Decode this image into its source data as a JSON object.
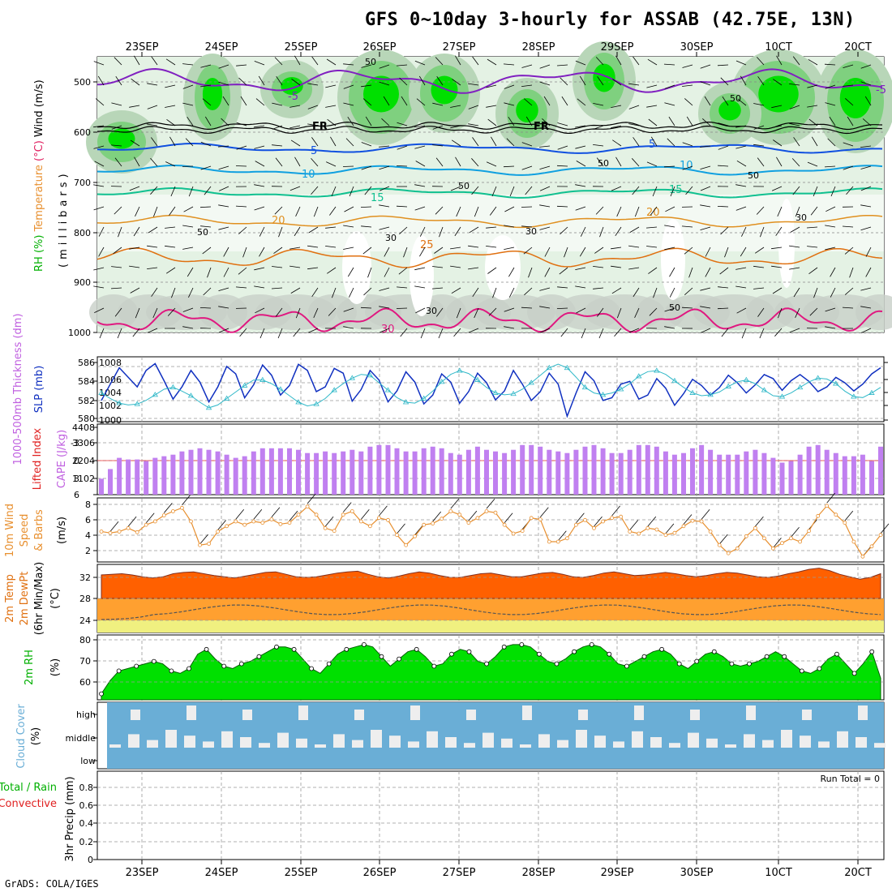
{
  "title": "GFS 0~10day 3-hourly for ASSAB (42.75E, 13N)",
  "footer": "GrADS: COLA/IGES",
  "dates": [
    "23SEP",
    "24SEP",
    "25SEP",
    "26SEP",
    "27SEP",
    "28SEP",
    "29SEP",
    "30SEP",
    "10CT",
    "20CT"
  ],
  "colors": {
    "rh_light": "#e4f2e4",
    "rh_mid": "#b8d6b8",
    "rh_gray": "#c8d0c8",
    "rh_green": "#7fd07f",
    "rh_bright": "#00e000",
    "cape": "#c080f0",
    "wind": "#e89030",
    "temp_top": "#ff6000",
    "temp_mid": "#ffa030",
    "temp_low": "#f0f080",
    "rh2m": "#00e000",
    "rh2m_dark": "#00b000",
    "cloud": "#6aaed6",
    "cloud_gap": "#eeeeee",
    "slp": "#1030c0",
    "thick": "#30b8c8"
  },
  "panels": {
    "upper": {
      "ylabel_parts": [
        {
          "text": "RH (%)",
          "color": "#00b000"
        },
        {
          "text": "Temperature",
          "color": "#e89030"
        },
        {
          "text": "(°C)",
          "color": "#e02060"
        },
        {
          "text": "Wind (m/s)",
          "color": "#000000"
        }
      ],
      "ylabel2": "(millibars)",
      "yticks": [
        "500",
        "600",
        "700",
        "800",
        "900",
        "1000"
      ],
      "isotherm_labels": [
        "-5",
        "-5",
        "5",
        "5",
        "10",
        "10",
        "15",
        "15",
        "20",
        "20",
        "25",
        "30"
      ],
      "freeze_labels": [
        "FR",
        "FR"
      ],
      "rh_labels": [
        "50",
        "50",
        "50",
        "50",
        "50",
        "50",
        "30",
        "30",
        "30",
        "30",
        "50"
      ]
    },
    "slp": {
      "ylabel_left": "1000-500mb Thickness (dm)",
      "ylabel_right": "SLP (mb)",
      "yticks_left": [
        "586",
        "584",
        "582",
        "580"
      ],
      "yticks_right": [
        "1008",
        "1006",
        "1004",
        "1002",
        "1000"
      ]
    },
    "cape": {
      "ylabel_left": "Lifted Index",
      "ylabel_right": "CAPE (J/kg)",
      "yticks_left": [
        "-3",
        "0",
        "3",
        "6"
      ],
      "yticks_right": [
        "4408",
        "3306",
        "2204",
        "1102"
      ]
    },
    "wind": {
      "ylabel": [
        "10m Wind",
        "Speed",
        "& Barbs"
      ],
      "unit": "(m/s)",
      "yticks": [
        "8",
        "6",
        "4",
        "2"
      ]
    },
    "temp": {
      "ylabel": [
        "2m Temp",
        "2m DewPt",
        "(6hr Min/Max)"
      ],
      "unit": "(°C)",
      "yticks": [
        "32",
        "28",
        "24"
      ]
    },
    "rh2m": {
      "ylabel": "2m RH",
      "unit": "(%)",
      "yticks": [
        "80",
        "70",
        "60"
      ]
    },
    "cloud": {
      "ylabel": "Cloud Cover",
      "unit": "(%)",
      "yticks": [
        "high",
        "middle",
        "low"
      ]
    },
    "precip": {
      "ylabel_parts": [
        {
          "text": "Total / Rain",
          "color": "#00b000"
        },
        {
          "text": "Convective",
          "color": "#e02020"
        }
      ],
      "ylabel2": "3hr Precip (mm)",
      "yticks": [
        "0.8",
        "0.6",
        "0.4",
        "0.2",
        "0"
      ],
      "run_total": "Run Total = 0"
    }
  },
  "chart_data": [
    {
      "type": "line",
      "name": "SLP",
      "unit": "mb",
      "x_labels": [
        "23SEP",
        "24SEP",
        "25SEP",
        "26SEP",
        "27SEP",
        "28SEP",
        "29SEP",
        "30SEP",
        "10CT",
        "20CT"
      ],
      "values": [
        1002.6,
        1005.0,
        1007.4,
        1006.0,
        1004.6,
        1007.0,
        1008.0,
        1005.5,
        1002.8,
        1004.6,
        1007.0,
        1005.3,
        1002.4,
        1004.6,
        1007.6,
        1006.5,
        1003.0,
        1004.9,
        1007.8,
        1006.3,
        1003.4,
        1004.8,
        1007.9,
        1007.0,
        1003.9,
        1004.6,
        1007.3,
        1006.6,
        1002.5,
        1004.2,
        1007.0,
        1005.6,
        1002.4,
        1004.0,
        1006.8,
        1005.3,
        1002.1,
        1003.4,
        1006.5,
        1005.3,
        1002.2,
        1003.9,
        1006.6,
        1005.2,
        1002.7,
        1004.0,
        1007.0,
        1005.0,
        1002.6,
        1003.9,
        1006.6,
        1005.0,
        1000.3,
        1003.7,
        1006.8,
        1005.5,
        1002.6,
        1003.0,
        1005.0,
        1005.4,
        1002.8,
        1003.4,
        1005.8,
        1004.4,
        1001.9,
        1003.6,
        1005.7,
        1004.8,
        1003.4,
        1004.5,
        1006.3,
        1005.2,
        1003.7,
        1004.9,
        1006.4,
        1005.8,
        1004.1,
        1005.5,
        1006.4,
        1005.4,
        1003.9,
        1004.6,
        1006.0,
        1005.2,
        1004.0,
        1005.0,
        1006.5,
        1007.4
      ]
    },
    {
      "type": "line",
      "name": "Thickness",
      "unit": "dm",
      "values": [
        582.6,
        582.0,
        581.5,
        581.3,
        581.4,
        581.8,
        582.4,
        583.0,
        583.2,
        582.8,
        582.3,
        581.6,
        581.0,
        581.3,
        582.0,
        582.7,
        583.4,
        584.0,
        584.0,
        583.6,
        583.0,
        582.3,
        581.6,
        581.2,
        581.4,
        582.0,
        582.9,
        583.6,
        584.2,
        584.6,
        584.5,
        583.7,
        582.9,
        582.1,
        581.6,
        581.5,
        582.0,
        582.8,
        583.8,
        584.6,
        585.0,
        584.7,
        584.0,
        583.2,
        582.6,
        582.4,
        582.5,
        583.0,
        583.7,
        584.5,
        585.3,
        585.7,
        585.3,
        584.3,
        583.2,
        582.6,
        582.4,
        582.6,
        583.0,
        583.6,
        584.4,
        584.9,
        585.0,
        584.6,
        583.9,
        583.2,
        582.6,
        582.3,
        582.4,
        582.7,
        583.3,
        583.8,
        584.0,
        583.6,
        582.9,
        582.3,
        582.2,
        582.6,
        583.2,
        583.8,
        584.2,
        584.1,
        583.6,
        582.8,
        582.2,
        582.1,
        582.6,
        583.2
      ]
    },
    {
      "type": "bar",
      "name": "CAPE",
      "unit": "J/kg",
      "ylim": [
        0,
        4408
      ],
      "values": [
        1000,
        1600,
        2300,
        2200,
        2200,
        2100,
        2300,
        2400,
        2500,
        2700,
        2800,
        2900,
        2800,
        2700,
        2500,
        2300,
        2400,
        2700,
        2900,
        2900,
        2900,
        2900,
        2800,
        2600,
        2600,
        2700,
        2600,
        2700,
        2800,
        2700,
        3000,
        3100,
        3100,
        2900,
        2700,
        2700,
        2900,
        3000,
        2900,
        2600,
        2500,
        2800,
        3000,
        2800,
        2700,
        2600,
        2800,
        3100,
        3100,
        3000,
        2800,
        2700,
        2600,
        2800,
        3000,
        3100,
        2900,
        2600,
        2600,
        2800,
        3100,
        3100,
        3000,
        2700,
        2500,
        2600,
        2900,
        3100,
        2800,
        2500,
        2500,
        2500,
        2700,
        2800,
        2600,
        2300,
        2000,
        2100,
        2500,
        3000,
        3100,
        2800,
        2600,
        2400,
        2400,
        2500,
        2100,
        3000
      ]
    },
    {
      "type": "line",
      "name": "10m Wind Speed",
      "unit": "m/s",
      "ylim": [
        0,
        9
      ],
      "values": [
        4.5,
        4.3,
        4.5,
        5.0,
        4.4,
        5.5,
        6.0,
        6.9,
        7.5,
        8.0,
        6.0,
        2.5,
        2.7,
        4.5,
        5.3,
        6.0,
        5.5,
        6.0,
        5.8,
        6.3,
        5.6,
        5.8,
        7.0,
        8.2,
        7.0,
        5.0,
        4.6,
        7.0,
        7.5,
        6.0,
        5.3,
        6.5,
        6.2,
        4.0,
        2.5,
        3.8,
        5.5,
        5.7,
        6.4,
        7.5,
        7.0,
        5.8,
        6.5,
        7.5,
        7.3,
        5.5,
        4.2,
        4.6,
        6.5,
        6.3,
        3.0,
        3.0,
        3.5,
        5.5,
        6.2,
        5.0,
        6.0,
        6.5,
        6.7,
        4.5,
        4.2,
        5.0,
        4.8,
        4.0,
        4.3,
        5.3,
        6.1,
        6.0,
        4.5,
        2.5,
        1.3,
        2.0,
        3.8,
        5.0,
        3.5,
        2.0,
        2.8,
        3.5,
        3.0,
        4.6,
        6.8,
        8.3,
        7.0,
        5.8,
        3.0,
        0.8,
        2.3,
        4.0
      ]
    },
    {
      "type": "area",
      "name": "2m Temp / DewPt",
      "unit": "°C",
      "ylim": [
        22,
        33
      ],
      "temp": [
        31.3,
        31.4,
        31.5,
        31.3,
        31.0,
        30.8,
        31.0,
        31.5,
        31.7,
        31.8,
        31.5,
        31.2,
        31.0,
        30.8,
        31.1,
        31.4,
        31.7,
        31.8,
        31.4,
        31.0,
        30.9,
        31.0,
        31.3,
        31.6,
        31.8,
        31.9,
        31.4,
        31.0,
        30.8,
        31.1,
        31.5,
        31.8,
        31.6,
        31.2,
        30.9,
        30.9,
        31.2,
        31.5,
        31.6,
        31.3,
        31.0,
        31.0,
        31.3,
        31.6,
        31.7,
        31.4,
        31.0,
        30.9,
        31.2,
        31.6,
        31.8,
        31.5,
        31.2,
        31.3,
        31.5,
        31.7,
        31.5,
        31.2,
        31.0,
        31.2,
        31.5,
        31.7,
        31.6,
        31.3,
        31.0,
        30.9,
        31.1,
        31.5,
        31.8,
        32.2,
        32.4,
        32.0,
        31.4,
        31.0,
        30.6,
        30.9,
        31.5
      ]
    },
    {
      "type": "area",
      "name": "2m RH",
      "unit": "%",
      "ylim": [
        55,
        82
      ],
      "values": [
        57.5,
        63,
        67,
        68,
        69,
        70,
        71,
        70,
        67,
        66,
        68,
        74,
        76,
        72,
        69,
        68,
        70,
        71,
        73,
        75,
        77,
        77,
        76,
        72,
        68,
        66,
        70,
        74,
        76,
        77,
        78,
        77,
        73,
        69,
        72,
        75,
        76,
        73,
        69,
        70,
        74,
        76,
        75,
        71,
        70,
        73,
        77,
        78,
        78,
        77,
        74,
        71,
        70,
        72,
        75,
        77,
        78,
        77,
        74,
        70,
        69,
        71,
        73,
        75,
        76,
        74,
        70,
        68,
        71,
        74,
        75,
        73,
        70,
        69,
        70,
        71,
        73,
        75,
        73,
        70,
        67,
        66,
        68,
        72,
        74,
        70,
        66,
        70,
        75,
        64
      ]
    },
    {
      "type": "bar",
      "name": "3hr Precip",
      "unit": "mm",
      "ylim": [
        0,
        0.9
      ],
      "values": [],
      "run_total": 0
    }
  ]
}
